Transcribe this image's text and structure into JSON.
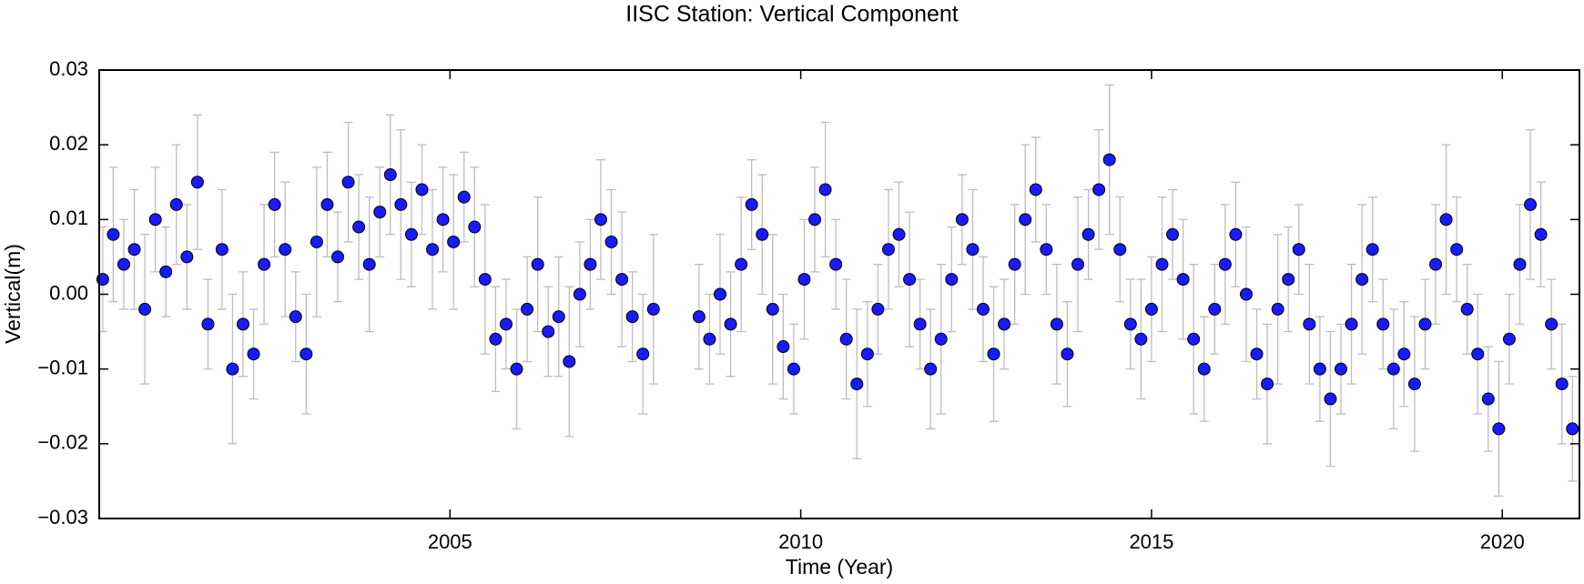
{
  "chart_data": {
    "type": "scatter",
    "title": "IISC Station: Vertical Component",
    "xlabel": "Time (Year)",
    "ylabel": "Vertical(m)",
    "color": "#1a1aff",
    "error_color": "#bdbdbd",
    "xlim": [
      2000.0,
      2021.1
    ],
    "ylim": [
      -0.03,
      0.03
    ],
    "xticks": [
      2005,
      2010,
      2015,
      2020
    ],
    "yticks": [
      {
        "value": -0.03,
        "label": "−0.03"
      },
      {
        "value": -0.02,
        "label": "−0.02"
      },
      {
        "value": -0.01,
        "label": "−0.01"
      },
      {
        "value": 0,
        "label": "0.00"
      },
      0.01,
      0.02,
      0.03
    ],
    "x": [
      2000.05,
      2000.2,
      2000.35,
      2000.5,
      2000.65,
      2000.8,
      2000.95,
      2001.1,
      2001.25,
      2001.4,
      2001.55,
      2001.75,
      2001.9,
      2002.05,
      2002.2,
      2002.35,
      2002.5,
      2002.65,
      2002.8,
      2002.95,
      2003.1,
      2003.25,
      2003.4,
      2003.55,
      2003.7,
      2003.85,
      2004.0,
      2004.15,
      2004.3,
      2004.45,
      2004.6,
      2004.75,
      2004.9,
      2005.05,
      2005.2,
      2005.35,
      2005.5,
      2005.65,
      2005.8,
      2005.95,
      2006.1,
      2006.25,
      2006.4,
      2006.55,
      2006.7,
      2006.85,
      2007.0,
      2007.15,
      2007.3,
      2007.45,
      2007.6,
      2007.75,
      2007.9,
      2008.55,
      2008.7,
      2008.85,
      2009.0,
      2009.15,
      2009.3,
      2009.45,
      2009.6,
      2009.75,
      2009.9,
      2010.05,
      2010.2,
      2010.35,
      2010.5,
      2010.65,
      2010.8,
      2010.95,
      2011.1,
      2011.25,
      2011.4,
      2011.55,
      2011.7,
      2011.85,
      2012.0,
      2012.15,
      2012.3,
      2012.45,
      2012.6,
      2012.75,
      2012.9,
      2013.05,
      2013.2,
      2013.35,
      2013.5,
      2013.65,
      2013.8,
      2013.95,
      2014.1,
      2014.25,
      2014.4,
      2014.55,
      2014.7,
      2014.85,
      2015.0,
      2015.15,
      2015.3,
      2015.45,
      2015.6,
      2015.75,
      2015.9,
      2016.05,
      2016.2,
      2016.35,
      2016.5,
      2016.65,
      2016.8,
      2016.95,
      2017.1,
      2017.25,
      2017.4,
      2017.55,
      2017.7,
      2017.85,
      2018.0,
      2018.15,
      2018.3,
      2018.45,
      2018.6,
      2018.75,
      2018.9,
      2019.05,
      2019.2,
      2019.35,
      2019.5,
      2019.65,
      2019.8,
      2019.95,
      2020.1,
      2020.25,
      2020.4,
      2020.55,
      2020.7,
      2020.85,
      2021.0
    ],
    "values": [
      0.002,
      0.008,
      0.004,
      0.006,
      -0.002,
      0.01,
      0.003,
      0.012,
      0.005,
      0.015,
      -0.004,
      0.006,
      -0.01,
      -0.004,
      -0.008,
      0.004,
      0.012,
      0.006,
      -0.003,
      -0.008,
      0.007,
      0.012,
      0.005,
      0.015,
      0.009,
      0.004,
      0.011,
      0.016,
      0.012,
      0.008,
      0.014,
      0.006,
      0.01,
      0.007,
      0.013,
      0.009,
      0.002,
      -0.006,
      -0.004,
      -0.01,
      -0.002,
      0.004,
      -0.005,
      -0.003,
      -0.009,
      0.0,
      0.004,
      0.01,
      0.007,
      0.002,
      -0.003,
      -0.008,
      -0.002,
      -0.003,
      -0.006,
      0.0,
      -0.004,
      0.004,
      0.012,
      0.008,
      -0.002,
      -0.007,
      -0.01,
      0.002,
      0.01,
      0.014,
      0.004,
      -0.006,
      -0.012,
      -0.008,
      -0.002,
      0.006,
      0.008,
      0.002,
      -0.004,
      -0.01,
      -0.006,
      0.002,
      0.01,
      0.006,
      -0.002,
      -0.008,
      -0.004,
      0.004,
      0.01,
      0.014,
      0.006,
      -0.004,
      -0.008,
      0.004,
      0.008,
      0.014,
      0.018,
      0.006,
      -0.004,
      -0.006,
      -0.002,
      0.004,
      0.008,
      0.002,
      -0.006,
      -0.01,
      -0.002,
      0.004,
      0.008,
      0.0,
      -0.008,
      -0.012,
      -0.002,
      0.002,
      0.006,
      -0.004,
      -0.01,
      -0.014,
      -0.01,
      -0.004,
      0.002,
      0.006,
      -0.004,
      -0.01,
      -0.008,
      -0.012,
      -0.004,
      0.004,
      0.01,
      0.006,
      -0.002,
      -0.008,
      -0.014,
      -0.018,
      -0.006,
      0.004,
      0.012,
      0.008,
      -0.004,
      -0.012,
      -0.018
    ],
    "errors": [
      0.007,
      0.009,
      0.006,
      0.008,
      0.01,
      0.007,
      0.006,
      0.008,
      0.007,
      0.009,
      0.006,
      0.008,
      0.01,
      0.007,
      0.006,
      0.008,
      0.007,
      0.009,
      0.006,
      0.008,
      0.01,
      0.007,
      0.006,
      0.008,
      0.007,
      0.009,
      0.006,
      0.008,
      0.01,
      0.007,
      0.006,
      0.008,
      0.007,
      0.009,
      0.006,
      0.008,
      0.01,
      0.007,
      0.006,
      0.008,
      0.007,
      0.009,
      0.006,
      0.008,
      0.01,
      0.007,
      0.006,
      0.008,
      0.007,
      0.009,
      0.006,
      0.008,
      0.01,
      0.007,
      0.006,
      0.008,
      0.007,
      0.009,
      0.006,
      0.008,
      0.01,
      0.007,
      0.006,
      0.008,
      0.007,
      0.009,
      0.006,
      0.008,
      0.01,
      0.007,
      0.006,
      0.008,
      0.007,
      0.009,
      0.006,
      0.008,
      0.01,
      0.007,
      0.006,
      0.008,
      0.007,
      0.009,
      0.006,
      0.008,
      0.01,
      0.007,
      0.006,
      0.008,
      0.007,
      0.009,
      0.006,
      0.008,
      0.01,
      0.007,
      0.006,
      0.008,
      0.007,
      0.009,
      0.006,
      0.008,
      0.01,
      0.007,
      0.006,
      0.008,
      0.007,
      0.009,
      0.006,
      0.008,
      0.01,
      0.007,
      0.006,
      0.008,
      0.007,
      0.009,
      0.006,
      0.008,
      0.01,
      0.007,
      0.006,
      0.008,
      0.007,
      0.009,
      0.006,
      0.008,
      0.01,
      0.007,
      0.006,
      0.008,
      0.007,
      0.009,
      0.006,
      0.008,
      0.01,
      0.007,
      0.006,
      0.008,
      0.007
    ]
  }
}
